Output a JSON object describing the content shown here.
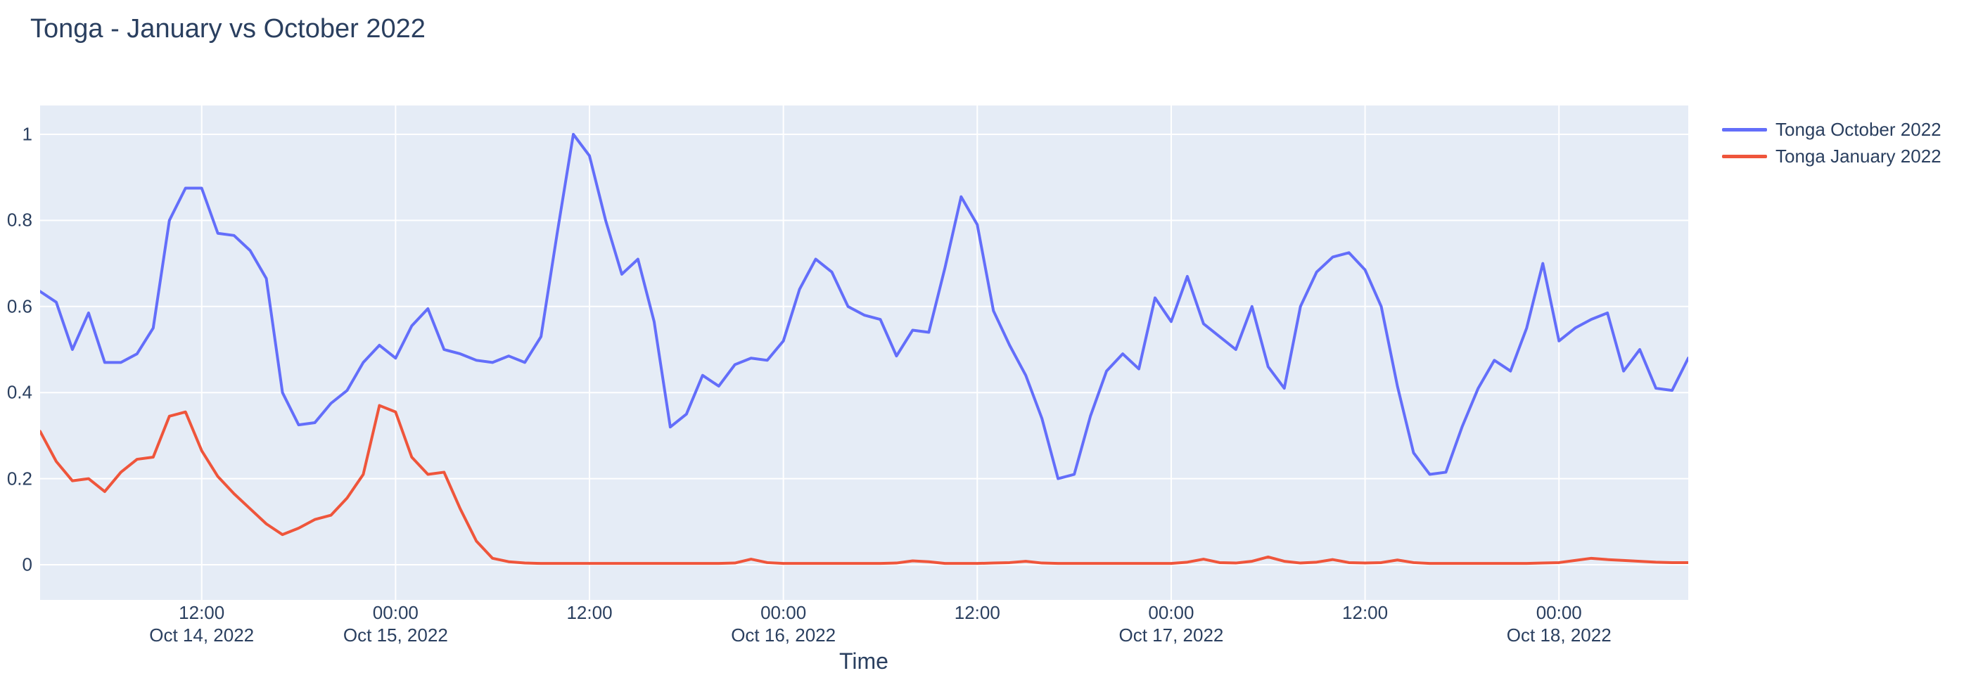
{
  "title": "Tonga - January vs October 2022",
  "colors": {
    "accent_blue": "#636EFA",
    "accent_red": "#EF553B",
    "text": "#2a3f5f",
    "plot_background": "#E5ECF6",
    "gridline": "#FFFFFF",
    "paper_background": "#FFFFFF"
  },
  "legend": {
    "items": [
      {
        "label": "Tonga October 2022",
        "color": "#636EFA"
      },
      {
        "label": "Tonga January 2022",
        "color": "#EF553B"
      }
    ]
  },
  "axes": {
    "x_title": "Time",
    "y_title": ""
  },
  "chart_data": {
    "type": "line",
    "title": "Tonga - January vs October 2022",
    "xlabel": "Time",
    "ylabel": "",
    "grid": "on",
    "legend_position": "right-top",
    "x_start": "2022-10-14 02:00",
    "x_interval_hours": 1,
    "x_total_hours": 102,
    "ylim": [
      -0.082,
      1.067
    ],
    "y_ticks": [
      {
        "value": 0,
        "label": "0"
      },
      {
        "value": 0.2,
        "label": "0.2"
      },
      {
        "value": 0.4,
        "label": "0.4"
      },
      {
        "value": 0.6,
        "label": "0.6"
      },
      {
        "value": 0.8,
        "label": "0.8"
      },
      {
        "value": 1,
        "label": "1"
      }
    ],
    "x_ticks": [
      {
        "hour_offset": 10,
        "time_label": "12:00",
        "date_label": "Oct 14, 2022"
      },
      {
        "hour_offset": 22,
        "time_label": "00:00",
        "date_label": "Oct 15, 2022"
      },
      {
        "hour_offset": 34,
        "time_label": "12:00",
        "date_label": ""
      },
      {
        "hour_offset": 46,
        "time_label": "00:00",
        "date_label": "Oct 16, 2022"
      },
      {
        "hour_offset": 58,
        "time_label": "12:00",
        "date_label": ""
      },
      {
        "hour_offset": 70,
        "time_label": "00:00",
        "date_label": "Oct 17, 2022"
      },
      {
        "hour_offset": 82,
        "time_label": "12:00",
        "date_label": ""
      },
      {
        "hour_offset": 94,
        "time_label": "00:00",
        "date_label": "Oct 18, 2022"
      }
    ],
    "series": [
      {
        "name": "Tonga October 2022",
        "color": "#636EFA",
        "values": [
          0.635,
          0.61,
          0.5,
          0.585,
          0.47,
          0.47,
          0.49,
          0.55,
          0.8,
          0.875,
          0.875,
          0.77,
          0.765,
          0.73,
          0.665,
          0.4,
          0.325,
          0.33,
          0.375,
          0.405,
          0.47,
          0.51,
          0.48,
          0.555,
          0.595,
          0.5,
          0.49,
          0.475,
          0.47,
          0.485,
          0.47,
          0.53,
          0.77,
          1.0,
          0.95,
          0.8,
          0.675,
          0.71,
          0.565,
          0.32,
          0.35,
          0.44,
          0.415,
          0.465,
          0.48,
          0.475,
          0.52,
          0.64,
          0.71,
          0.68,
          0.6,
          0.58,
          0.57,
          0.485,
          0.545,
          0.54,
          0.69,
          0.855,
          0.79,
          0.59,
          0.51,
          0.44,
          0.34,
          0.2,
          0.21,
          0.345,
          0.45,
          0.49,
          0.455,
          0.62,
          0.565,
          0.67,
          0.56,
          0.53,
          0.5,
          0.6,
          0.46,
          0.41,
          0.6,
          0.68,
          0.715,
          0.725,
          0.685,
          0.6,
          0.415,
          0.26,
          0.21,
          0.215,
          0.32,
          0.41,
          0.475,
          0.45,
          0.55,
          0.7,
          0.52,
          0.55,
          0.57,
          0.585,
          0.45,
          0.5,
          0.41,
          0.405,
          0.48
        ]
      },
      {
        "name": "Tonga January 2022",
        "color": "#EF553B",
        "values": [
          0.31,
          0.24,
          0.195,
          0.2,
          0.17,
          0.215,
          0.245,
          0.25,
          0.345,
          0.355,
          0.265,
          0.205,
          0.165,
          0.13,
          0.095,
          0.07,
          0.085,
          0.105,
          0.115,
          0.155,
          0.21,
          0.37,
          0.355,
          0.25,
          0.21,
          0.215,
          0.13,
          0.055,
          0.015,
          0.007,
          0.004,
          0.003,
          0.003,
          0.003,
          0.003,
          0.003,
          0.003,
          0.003,
          0.003,
          0.003,
          0.003,
          0.003,
          0.003,
          0.004,
          0.013,
          0.005,
          0.003,
          0.003,
          0.003,
          0.003,
          0.003,
          0.003,
          0.003,
          0.004,
          0.009,
          0.007,
          0.003,
          0.003,
          0.003,
          0.004,
          0.005,
          0.008,
          0.004,
          0.003,
          0.003,
          0.003,
          0.003,
          0.003,
          0.003,
          0.003,
          0.003,
          0.006,
          0.013,
          0.005,
          0.004,
          0.008,
          0.018,
          0.008,
          0.004,
          0.006,
          0.012,
          0.005,
          0.004,
          0.005,
          0.011,
          0.005,
          0.003,
          0.003,
          0.003,
          0.003,
          0.003,
          0.003,
          0.003,
          0.004,
          0.005,
          0.01,
          0.015,
          0.012,
          0.01,
          0.008,
          0.006,
          0.005,
          0.005
        ]
      }
    ]
  }
}
